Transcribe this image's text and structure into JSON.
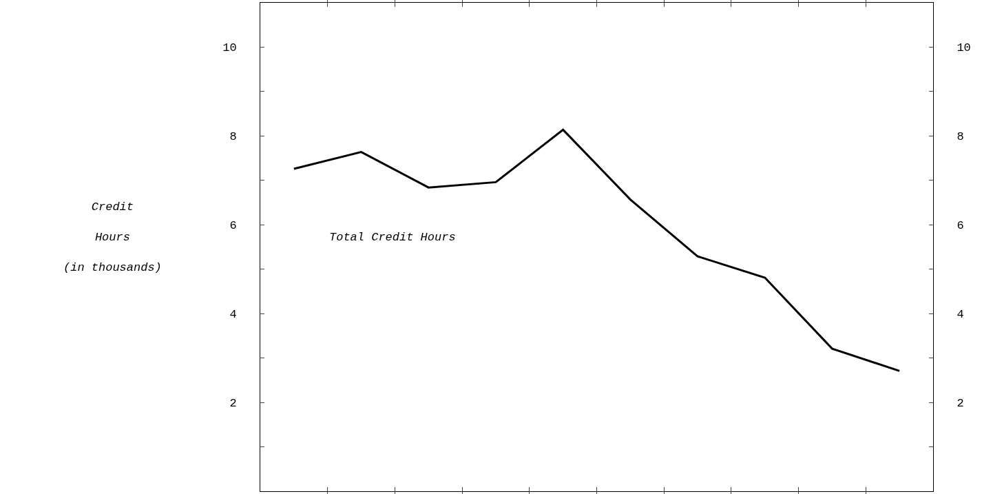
{
  "chart_data": {
    "type": "line",
    "ylabel": "Credit\nHours\n(in thousands)",
    "categories": [
      null,
      null,
      null,
      null,
      null,
      null,
      null,
      null,
      null,
      null
    ],
    "series": [
      {
        "name": "Total Credit Hours",
        "color": "#000000",
        "values": [
          7.26,
          7.64,
          6.84,
          6.96,
          8.14,
          6.57,
          5.29,
          4.81,
          3.21,
          2.71
        ]
      }
    ],
    "ylim": [
      0,
      11
    ],
    "yticks": [
      {
        "value": 1,
        "label": null
      },
      2,
      {
        "value": 3,
        "label": null
      },
      4,
      {
        "value": 5,
        "label": null
      },
      6,
      {
        "value": 7,
        "label": null
      },
      8,
      {
        "value": 9,
        "label": null
      },
      10
    ],
    "y2lim": [
      0,
      11
    ],
    "y2ticks": [
      {
        "value": 1,
        "label": null
      },
      2,
      {
        "value": 3,
        "label": null
      },
      4,
      {
        "value": 5,
        "label": null
      },
      6,
      {
        "value": 7,
        "label": null
      },
      8,
      {
        "value": 9,
        "label": null
      },
      10
    ],
    "tick_labels": "y",
    "legend": false,
    "marker": "none",
    "line_style": "solid"
  }
}
